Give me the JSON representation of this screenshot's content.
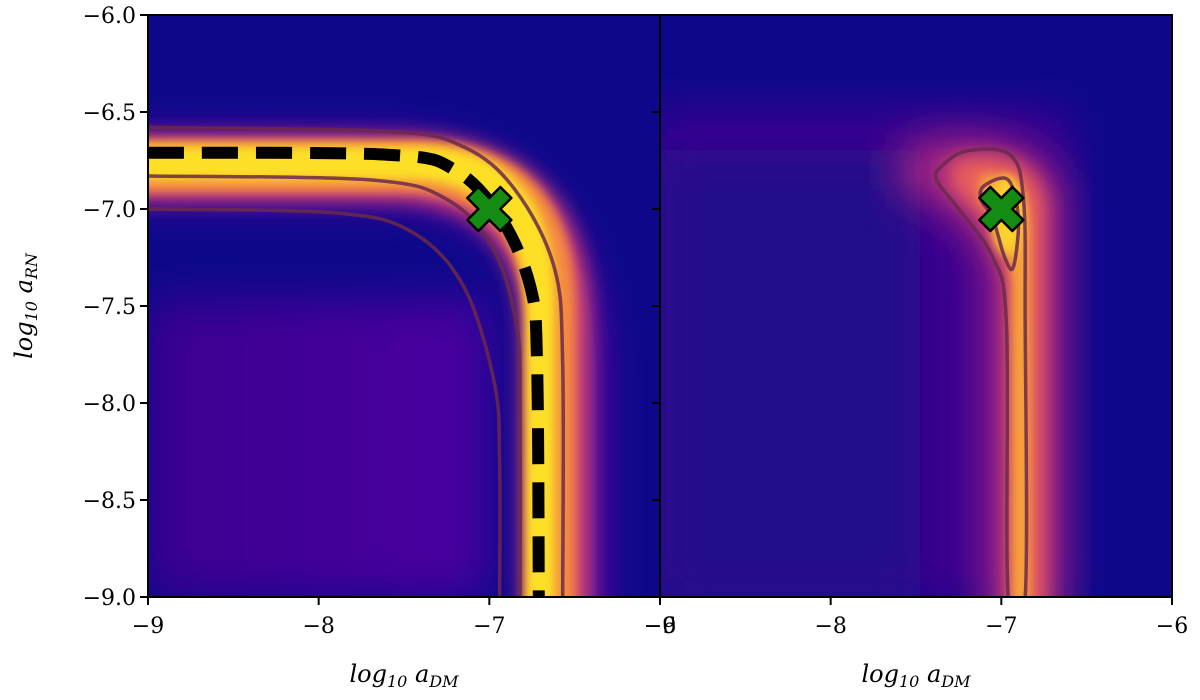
{
  "chart_data": [
    {
      "type": "heatmap",
      "panel": "left",
      "xlabel": "log10 aDM",
      "ylabel": "log10 aRN",
      "xlim": [
        -9,
        -6
      ],
      "ylim": [
        -9,
        -6
      ],
      "x_ticks": [
        -9,
        -8,
        -7,
        -6
      ],
      "y_ticks": [
        -9.0,
        -8.5,
        -8.0,
        -7.5,
        -7.0,
        -6.5,
        -6.0
      ],
      "x_tick_labels": [
        "−9",
        "−8",
        "−7",
        "−6"
      ],
      "y_tick_labels": [
        "−9.0",
        "−8.5",
        "−8.0",
        "−7.5",
        "−7.0",
        "−6.5",
        "−6.0"
      ],
      "colormap": "plasma",
      "contours": [
        {
          "level": "outer",
          "color": "#6b2a4a",
          "points": [
            [
              -9,
              -6.58
            ],
            [
              -7.6,
              -6.6
            ],
            [
              -7.15,
              -6.68
            ],
            [
              -6.85,
              -6.9
            ],
            [
              -6.62,
              -7.3
            ],
            [
              -6.57,
              -7.8
            ],
            [
              -6.57,
              -9
            ]
          ]
        },
        {
          "level": "middle",
          "color": "#6b2a4a",
          "points": [
            [
              -9,
              -6.83
            ],
            [
              -7.7,
              -6.85
            ],
            [
              -7.25,
              -6.95
            ],
            [
              -6.98,
              -7.2
            ],
            [
              -6.84,
              -7.6
            ],
            [
              -6.82,
              -8.0
            ],
            [
              -6.82,
              -9
            ]
          ]
        },
        {
          "level": "inner",
          "color": "#6b2a4a",
          "points": [
            [
              -9,
              -7.0
            ],
            [
              -7.9,
              -7.02
            ],
            [
              -7.45,
              -7.12
            ],
            [
              -7.15,
              -7.4
            ],
            [
              -6.97,
              -7.9
            ],
            [
              -6.94,
              -8.3
            ],
            [
              -6.94,
              -9
            ]
          ]
        }
      ],
      "degeneracy_line": {
        "style": "dashed",
        "color": "#000000",
        "points": [
          [
            -9,
            -6.71
          ],
          [
            -7.6,
            -6.72
          ],
          [
            -7.2,
            -6.8
          ],
          [
            -6.93,
            -7.05
          ],
          [
            -6.76,
            -7.4
          ],
          [
            -6.72,
            -7.8
          ],
          [
            -6.71,
            -9
          ]
        ]
      },
      "marker": {
        "x": -7.0,
        "y": -7.0,
        "shape": "X",
        "color": "#148c14"
      }
    },
    {
      "type": "heatmap",
      "panel": "right",
      "xlabel": "log10 aDM",
      "xlim": [
        -9,
        -6
      ],
      "ylim": [
        -9,
        -6
      ],
      "x_ticks": [
        -9,
        -8,
        -7,
        -6
      ],
      "x_tick_labels": [
        "−9",
        "−8",
        "−7",
        "−6"
      ],
      "colormap": "plasma",
      "contours": [
        {
          "level": "outer",
          "color": "#6b2a4a",
          "closed": true,
          "points": [
            [
              -7.35,
              -6.78
            ],
            [
              -7.2,
              -6.7
            ],
            [
              -6.95,
              -6.72
            ],
            [
              -6.87,
              -6.95
            ],
            [
              -6.86,
              -7.6
            ],
            [
              -6.86,
              -9
            ],
            [
              -6.96,
              -9
            ],
            [
              -6.97,
              -7.6
            ],
            [
              -7.05,
              -7.25
            ],
            [
              -7.25,
              -7.0
            ],
            [
              -7.38,
              -6.85
            ]
          ]
        },
        {
          "level": "inner",
          "color": "#6b2a4a",
          "closed": true,
          "points": [
            [
              -7.1,
              -6.88
            ],
            [
              -6.96,
              -6.85
            ],
            [
              -6.9,
              -7.05
            ],
            [
              -6.93,
              -7.3
            ],
            [
              -6.98,
              -7.25
            ],
            [
              -7.05,
              -7.05
            ],
            [
              -7.12,
              -6.95
            ]
          ]
        }
      ],
      "marker": {
        "x": -7.0,
        "y": -7.0,
        "shape": "X",
        "color": "#148c14"
      }
    }
  ]
}
